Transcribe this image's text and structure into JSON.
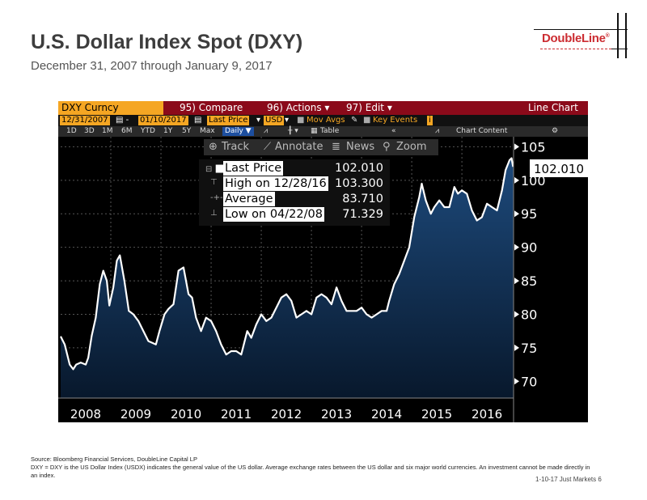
{
  "page": {
    "title": "U.S. Dollar Index Spot (DXY)",
    "subtitle": "December 31, 2007 through January 9, 2017",
    "logo_text": "DoubleLine",
    "logo_reg": "®",
    "source_line": "Source: Bloomberg Financial Services, DoubleLine Capital LP",
    "definition": "DXY = DXY is the US Dollar Index (USDX) indicates the general value of the US dollar. Average exchange rates between the US dollar and six major world currencies. An investment cannot be made directly in an index.",
    "footer": "1-10-17 Just Markets  6"
  },
  "terminal": {
    "ticker": "DXY Curncy",
    "compare": "95) Compare",
    "actions": "96) Actions ▾",
    "edit": "97) Edit ▾",
    "chart_type": "Line Chart",
    "start_date": "12/31/2007",
    "end_date": "01/10/2017",
    "field": "Last Price",
    "currency": "USD",
    "mov_avgs": "Mov Avgs",
    "key_events": "Key Events",
    "periods": [
      "1D",
      "3D",
      "1M",
      "6M",
      "YTD",
      "1Y",
      "5Y",
      "Max"
    ],
    "frequency": "Daily ▼",
    "table": "Table",
    "chart_content": "Chart Content",
    "tools": [
      "Track",
      "Annotate",
      "News",
      "Zoom"
    ],
    "colors": {
      "toolbar": "#8b0a1a",
      "accent": "#f5a623",
      "area_top": "#163b66",
      "line": "#ffffff"
    }
  },
  "legend": {
    "rows": [
      {
        "label": "Last Price",
        "value": "102.010"
      },
      {
        "label": "High on 12/28/16",
        "value": "103.300"
      },
      {
        "label": "Average",
        "value": "83.710"
      },
      {
        "label": "Low on 04/22/08",
        "value": "71.329"
      }
    ],
    "last_value_box": "102.010"
  },
  "chart_data": {
    "type": "area",
    "title": "",
    "xlabel": "",
    "ylabel": "",
    "ylim": [
      67.5,
      106.5
    ],
    "yticks": [
      70,
      75,
      80,
      85,
      90,
      95,
      100,
      105
    ],
    "xlim": [
      2008.0,
      2017.03
    ],
    "xtick_labels": [
      "2008",
      "2009",
      "2010",
      "2011",
      "2012",
      "2013",
      "2014",
      "2015",
      "2016"
    ],
    "grid": true,
    "series": [
      {
        "x": [
          2008.0,
          2008.08,
          2008.18,
          2008.25,
          2008.31,
          2008.4,
          2008.5,
          2008.55,
          2008.62,
          2008.7,
          2008.78,
          2008.85,
          2008.92,
          2008.97,
          2009.05,
          2009.12,
          2009.18,
          2009.27,
          2009.36,
          2009.45,
          2009.55,
          2009.65,
          2009.75,
          2009.9,
          2009.97,
          2010.07,
          2010.15,
          2010.25,
          2010.35,
          2010.45,
          2010.55,
          2010.62,
          2010.7,
          2010.8,
          2010.9,
          2011.0,
          2011.1,
          2011.2,
          2011.3,
          2011.4,
          2011.5,
          2011.6,
          2011.72,
          2011.8,
          2011.9,
          2012.0,
          2012.1,
          2012.2,
          2012.3,
          2012.4,
          2012.5,
          2012.6,
          2012.7,
          2012.8,
          2012.9,
          2013.0,
          2013.1,
          2013.2,
          2013.3,
          2013.4,
          2013.5,
          2013.6,
          2013.7,
          2013.8,
          2013.9,
          2014.0,
          2014.1,
          2014.2,
          2014.3,
          2014.4,
          2014.5,
          2014.55,
          2014.65,
          2014.75,
          2014.85,
          2014.95,
          2015.05,
          2015.15,
          2015.2,
          2015.28,
          2015.38,
          2015.45,
          2015.55,
          2015.65,
          2015.75,
          2015.85,
          2015.92,
          2016.0,
          2016.1,
          2016.2,
          2016.3,
          2016.4,
          2016.5,
          2016.6,
          2016.7,
          2016.8,
          2016.87,
          2016.95,
          2016.99,
          2017.02
        ],
        "values": [
          76.7,
          75.5,
          72.5,
          71.8,
          72.5,
          72.8,
          72.5,
          73.5,
          76.8,
          79.5,
          84.5,
          86.5,
          85.0,
          81.3,
          84.0,
          88.0,
          88.8,
          85.0,
          80.5,
          80.0,
          79.0,
          77.5,
          76.0,
          75.5,
          77.5,
          80.0,
          80.8,
          81.5,
          86.5,
          87.0,
          83.0,
          82.5,
          79.5,
          77.5,
          79.5,
          79.0,
          77.5,
          75.5,
          74.0,
          74.5,
          74.5,
          74.0,
          77.5,
          76.5,
          78.5,
          80.0,
          79.0,
          79.5,
          81.0,
          82.5,
          83.0,
          82.0,
          79.5,
          80.0,
          80.5,
          80.0,
          82.5,
          83.0,
          82.5,
          81.5,
          84.0,
          82.0,
          80.5,
          80.5,
          80.5,
          81.0,
          80.0,
          79.5,
          80.0,
          80.5,
          80.5,
          82.0,
          84.5,
          86.0,
          88.0,
          90.0,
          94.5,
          97.5,
          99.5,
          97.0,
          95.0,
          96.0,
          97.0,
          96.0,
          96.0,
          99.0,
          98.0,
          98.5,
          98.0,
          95.5,
          94.0,
          94.5,
          96.5,
          96.0,
          95.5,
          98.5,
          101.5,
          103.0,
          103.3,
          102.01
        ]
      }
    ]
  }
}
